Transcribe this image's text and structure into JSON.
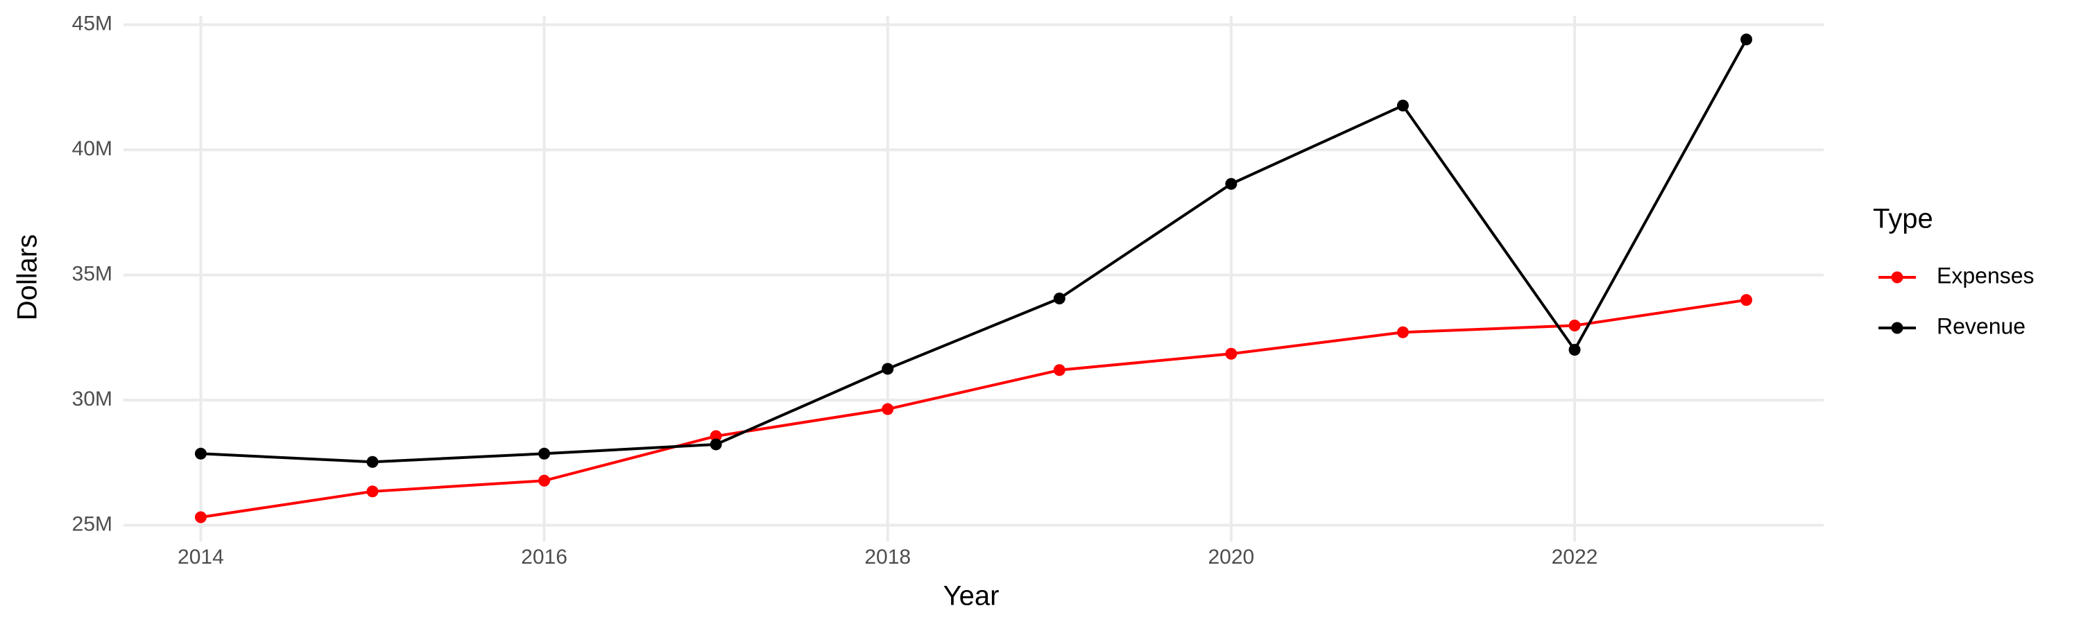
{
  "chart_data": {
    "type": "line",
    "x_label": "Year",
    "y_label": "Dollars",
    "legend_title": "Type",
    "x": [
      2014,
      2015,
      2016,
      2017,
      2018,
      2019,
      2020,
      2021,
      2022,
      2023
    ],
    "series": [
      {
        "name": "Expenses",
        "color": "#ff0000",
        "values": [
          25320000,
          26350000,
          26780000,
          28560000,
          29640000,
          31200000,
          31850000,
          32710000,
          32980000,
          34000000
        ]
      },
      {
        "name": "Revenue",
        "color": "#000000",
        "values": [
          27860000,
          27530000,
          27860000,
          28230000,
          31250000,
          34060000,
          38640000,
          41770000,
          32010000,
          44410000
        ]
      }
    ],
    "xlim": [
      2013.55,
      2023.45
    ],
    "xticks": [
      2014,
      2016,
      2018,
      2020,
      2022
    ],
    "ylim": [
      24350000,
      45350000
    ],
    "yticks": [
      {
        "value": 25000000,
        "label": "25M"
      },
      {
        "value": 30000000,
        "label": "30M"
      },
      {
        "value": 35000000,
        "label": "35M"
      },
      {
        "value": 40000000,
        "label": "40M"
      },
      {
        "value": 45000000,
        "label": "45M"
      }
    ],
    "grid": true,
    "legend": "right"
  }
}
